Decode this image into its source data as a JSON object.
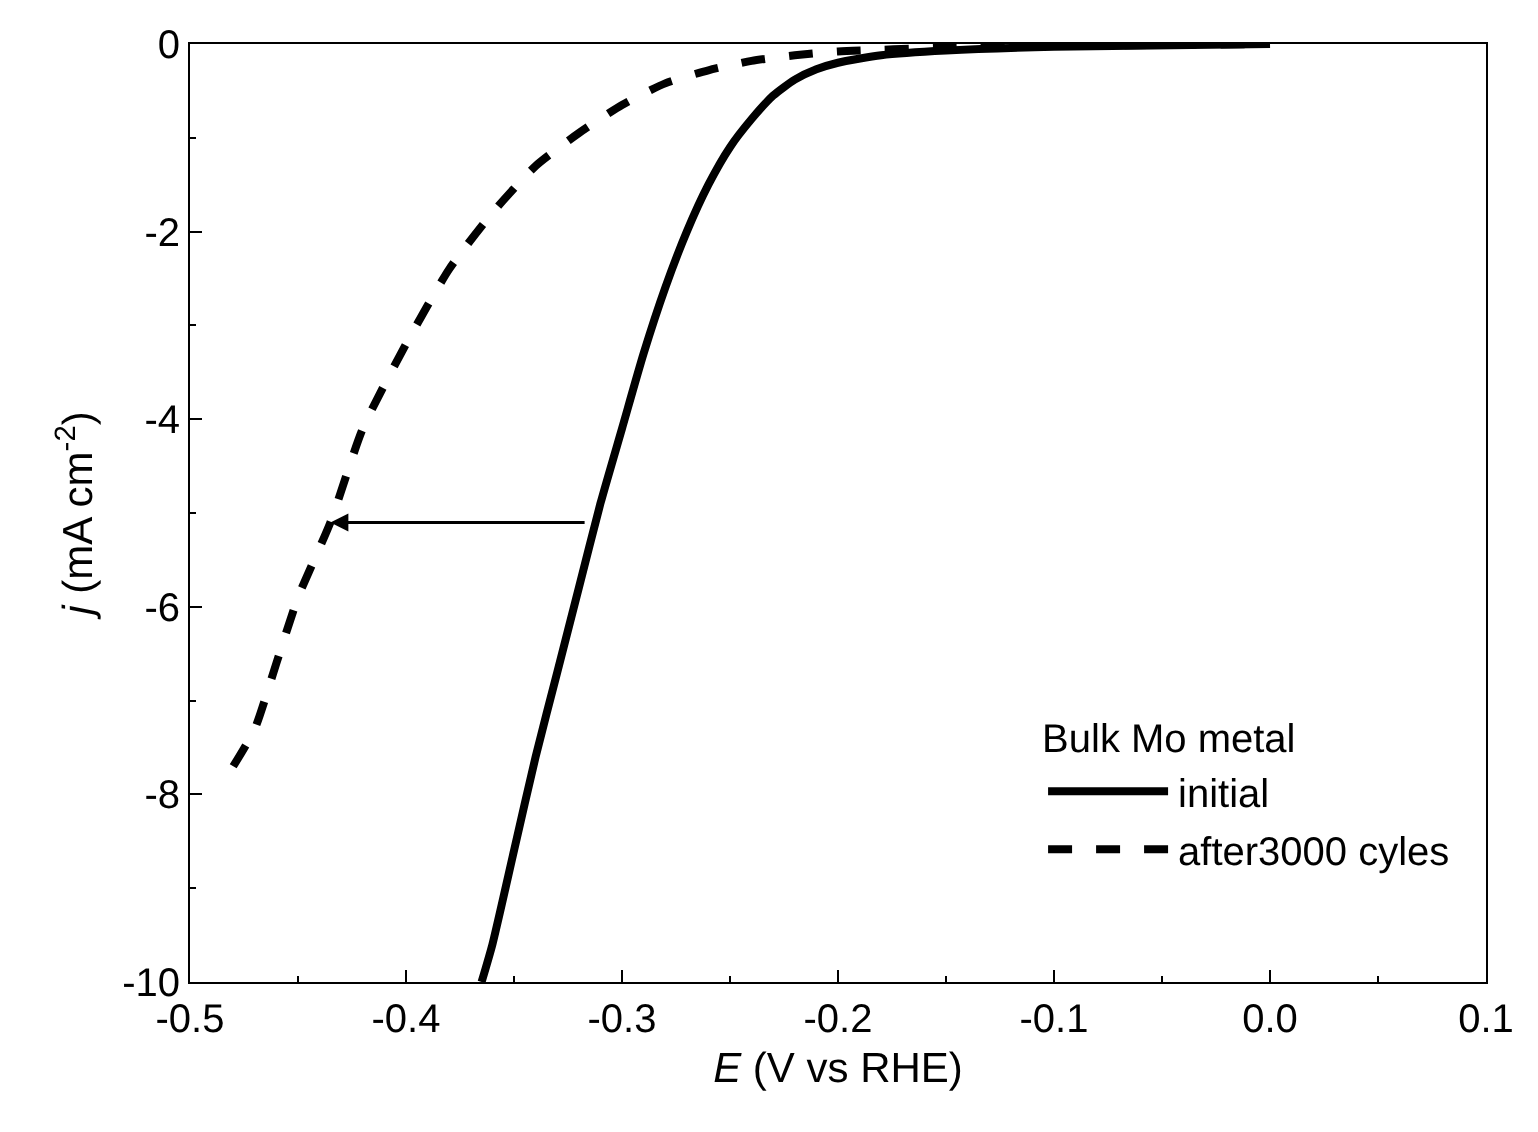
{
  "chart_data": {
    "type": "line",
    "xlabel": "E (V vs RHE)",
    "ylabel": "j (mA cm$^{-2}$)",
    "legend_title": "Bulk Mo metal",
    "legend": "bottom right",
    "marker": "none",
    "xlim": [
      -0.5,
      0.1
    ],
    "xticks": [
      -0.5,
      -0.4,
      -0.3,
      -0.2,
      -0.1,
      {
        "value": 0,
        "label": "0.0"
      },
      0.1
    ],
    "ylim": [
      -10,
      0
    ],
    "yticks": [
      -10,
      -8,
      -6,
      -4,
      -2,
      0
    ],
    "series": [
      {
        "name": "initial",
        "color": "#000000",
        "line_style": "solid",
        "x": [
          -0.365,
          -0.36,
          -0.35,
          -0.34,
          -0.33,
          -0.32,
          -0.31,
          -0.3,
          -0.29,
          -0.28,
          -0.27,
          -0.26,
          -0.25,
          -0.24,
          -0.23,
          -0.22,
          -0.21,
          -0.2,
          -0.18,
          -0.15,
          -0.1,
          0
        ],
        "values": [
          -10,
          -9.6,
          -8.6,
          -7.6,
          -6.7,
          -5.8,
          -4.9,
          -4.1,
          -3.3,
          -2.6,
          -2.0,
          -1.5,
          -1.1,
          -0.8,
          -0.55,
          -0.38,
          -0.27,
          -0.2,
          -0.12,
          -0.07,
          -0.03,
          0
        ]
      },
      {
        "name": "after3000 cyles",
        "color": "#000000",
        "line_style": "dashed",
        "x": [
          -0.48,
          -0.47,
          -0.46,
          -0.45,
          -0.435,
          -0.42,
          -0.4,
          -0.38,
          -0.36,
          -0.34,
          -0.32,
          -0.3,
          -0.28,
          -0.26,
          -0.24,
          -0.22,
          -0.2,
          -0.15,
          -0.1,
          0
        ],
        "values": [
          -7.7,
          -7.3,
          -6.6,
          -5.9,
          -5.1,
          -4.1,
          -3.2,
          -2.4,
          -1.8,
          -1.3,
          -0.95,
          -0.65,
          -0.42,
          -0.28,
          -0.18,
          -0.12,
          -0.08,
          -0.04,
          -0.02,
          0
        ]
      }
    ]
  }
}
